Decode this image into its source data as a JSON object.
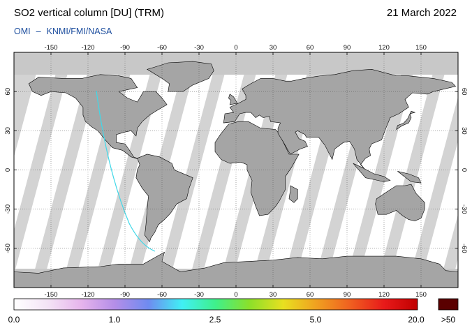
{
  "header": {
    "title": "SO2 vertical column [DU] (TRM)",
    "date": "21 March 2022",
    "instrument": "OMI",
    "separator": "–",
    "source": "KNMI/FMI/NASA"
  },
  "map": {
    "projection": "equirectangular",
    "lon_ticks": [
      -150,
      -120,
      -90,
      -60,
      -30,
      0,
      30,
      60,
      90,
      120,
      150
    ],
    "lat_ticks": [
      60,
      30,
      0,
      -30,
      -60
    ],
    "lon_labels": [
      "-150",
      "-120",
      "-90",
      "-60",
      "-30",
      "0",
      "30",
      "60",
      "90",
      "120",
      "150"
    ],
    "lat_labels_left": [
      "60",
      "30",
      "0",
      "-30",
      "-60"
    ],
    "lat_labels_right": [
      "60",
      "30",
      "0",
      "-30",
      "-60"
    ],
    "colors": {
      "land": "#a5a5a5",
      "swath": "#ffffff",
      "gap": "#d3d3d3",
      "polar": "#c8c8c8"
    }
  },
  "colorbar": {
    "labels": [
      "0.0",
      "1.0",
      "2.5",
      "5.0",
      "20.0"
    ],
    "overflow_label": ">50",
    "overflow_color": "#5a0000",
    "colors": [
      "#ffffff",
      "#f4e4f6",
      "#e6b4ec",
      "#b48ee8",
      "#6f8bf0",
      "#40f0f4",
      "#3ff08a",
      "#8be02a",
      "#e8e020",
      "#f0a020",
      "#f06020",
      "#e81a1a",
      "#c00000"
    ]
  }
}
